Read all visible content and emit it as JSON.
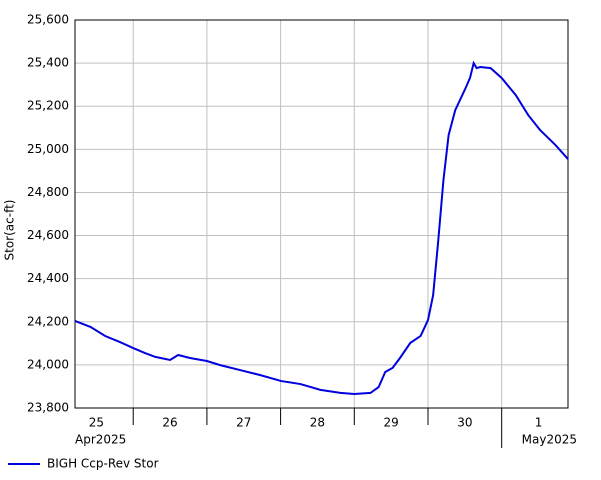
{
  "chart_data": {
    "type": "line",
    "y_label": "Stor(ac-ft)",
    "x": [
      0.21,
      0.42,
      0.62,
      0.82,
      1.0,
      1.16,
      1.3,
      1.5,
      1.61,
      1.77,
      2.0,
      2.18,
      2.45,
      2.72,
      3.01,
      3.27,
      3.54,
      3.81,
      4.0,
      4.22,
      4.33,
      4.42,
      4.52,
      4.62,
      4.76,
      4.9,
      5.0,
      5.07,
      5.14,
      5.21,
      5.28,
      5.37,
      5.51,
      5.57,
      5.62,
      5.66,
      5.71,
      5.85,
      6.0,
      6.19,
      6.36,
      6.52,
      6.73,
      6.9
    ],
    "series": [
      {
        "name": "BIGH Ccp-Rev Stor",
        "color": "#0000dd",
        "values": [
          24204,
          24176,
          24134,
          24106,
          24078,
          24055,
          24037,
          24023,
          24046,
          24032,
          24018,
          23999,
          23976,
          23953,
          23925,
          23911,
          23884,
          23870,
          23865,
          23870,
          23897,
          23967,
          23986,
          24032,
          24102,
          24134,
          24208,
          24324,
          24579,
          24858,
          25066,
          25182,
          25284,
          25331,
          25400,
          25377,
          25382,
          25377,
          25331,
          25252,
          25159,
          25090,
          25020,
          24955
        ]
      }
    ],
    "xlim": [
      0.21,
      6.9
    ],
    "xticks": [
      {
        "value": 0.5,
        "label": "25"
      },
      {
        "value": 1.5,
        "label": "26"
      },
      {
        "value": 2.5,
        "label": "27"
      },
      {
        "value": 3.5,
        "label": "28"
      },
      {
        "value": 4.5,
        "label": "29"
      },
      {
        "value": 5.5,
        "label": "30"
      },
      {
        "value": 6.5,
        "label": "1"
      }
    ],
    "xgrid": [
      1,
      2,
      3,
      4,
      5,
      6
    ],
    "month_labels": [
      {
        "value": 0.21,
        "label": "Apr2025"
      },
      {
        "value": 6,
        "label": "May2025"
      }
    ],
    "ylim": [
      23800,
      25600
    ],
    "yticks": [
      {
        "value": 23800,
        "label": "23,800"
      },
      {
        "value": 24000,
        "label": "24,000"
      },
      {
        "value": 24200,
        "label": "24,200"
      },
      {
        "value": 24400,
        "label": "24,400"
      },
      {
        "value": 24600,
        "label": "24,600"
      },
      {
        "value": 24800,
        "label": "24,800"
      },
      {
        "value": 25000,
        "label": "25,000"
      },
      {
        "value": 25200,
        "label": "25,200"
      },
      {
        "value": 25400,
        "label": "25,400"
      },
      {
        "value": 25600,
        "label": "25,600"
      }
    ],
    "grid": true
  }
}
